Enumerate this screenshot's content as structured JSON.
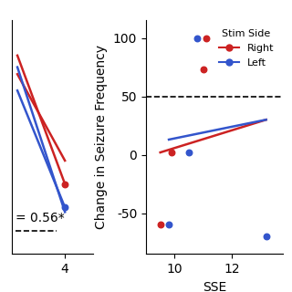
{
  "chart_data": [
    {
      "type": "line",
      "annotation": "= 0.56*",
      "xlim": [
        1.2,
        5.5
      ],
      "ylim": [
        -85,
        15
      ],
      "xticks": [
        4
      ],
      "tick_labels": "x",
      "series": [
        {
          "type": "line",
          "color": "#CC2222",
          "x": [
            1.5,
            4.0
          ],
          "values": [
            0,
            -55
          ]
        },
        {
          "type": "line",
          "color": "#CC2222",
          "x": [
            1.5,
            4.0
          ],
          "values": [
            -8,
            -45
          ]
        },
        {
          "type": "line",
          "color": "#3355CC",
          "x": [
            1.5,
            4.0
          ],
          "values": [
            -15,
            -65
          ]
        },
        {
          "type": "line",
          "color": "#3355CC",
          "x": [
            1.5,
            4.0
          ],
          "values": [
            -5,
            -67
          ]
        },
        {
          "type": "scatter",
          "color": "#CC2222",
          "x": [
            4.0
          ],
          "values": [
            -55
          ]
        },
        {
          "type": "scatter",
          "color": "#3355CC",
          "x": [
            4.0
          ],
          "values": [
            -65
          ]
        }
      ]
    },
    {
      "type": "scatter",
      "x_label": "SSE",
      "y_label": "Change in Seizure Frequency",
      "legend": "upper right",
      "legend_title": "Stim Side",
      "hline": 50,
      "xlim": [
        9.0,
        13.8
      ],
      "ylim": [
        -85,
        115
      ],
      "xticks": [
        10,
        12
      ],
      "yticks": [
        -50,
        0,
        50,
        100
      ],
      "series": [
        {
          "name": "Right",
          "type": "scatter",
          "color": "#CC2222",
          "x": [
            9.5,
            11.0,
            11.1,
            9.9
          ],
          "values": [
            -60,
            73,
            100,
            2
          ]
        },
        {
          "name": "Left",
          "type": "scatter",
          "color": "#3355CC",
          "x": [
            9.8,
            10.8,
            13.2,
            10.5
          ],
          "values": [
            -60,
            100,
            -70,
            2
          ]
        },
        {
          "type": "line",
          "color": "#CC2222",
          "x": [
            9.5,
            13.2
          ],
          "values": [
            2,
            30
          ]
        },
        {
          "type": "line",
          "color": "#3355CC",
          "x": [
            9.8,
            13.2
          ],
          "values": [
            13,
            30
          ]
        }
      ]
    }
  ]
}
